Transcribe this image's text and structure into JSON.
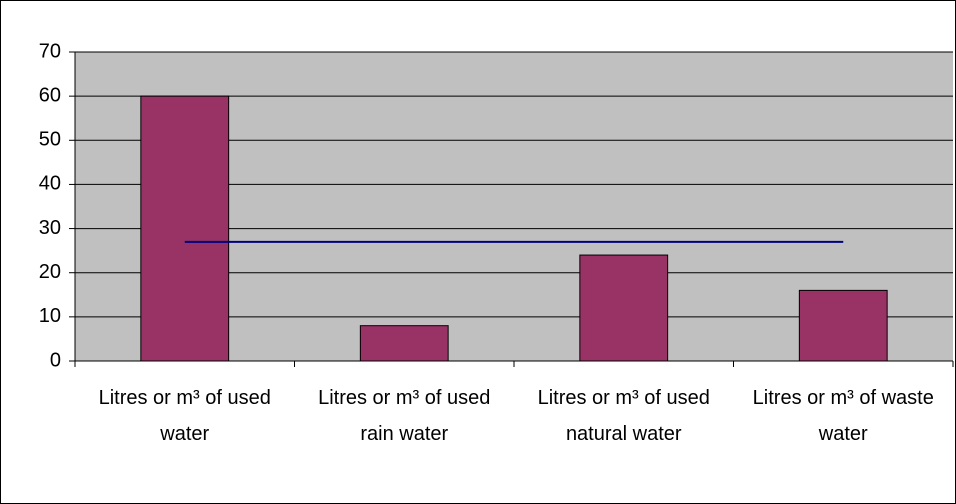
{
  "chart_data": {
    "type": "bar",
    "categories": [
      "Litres or m³ of used water",
      "Litres or m³ of used rain water",
      "Litres or m³ of used natural water",
      "Litres or m³ of waste water"
    ],
    "series": [
      {
        "type": "bar",
        "color": "#993366",
        "values": [
          60,
          8,
          24,
          16
        ]
      },
      {
        "type": "line",
        "color": "#000080",
        "values": [
          27,
          27,
          27,
          27
        ]
      }
    ],
    "ylim": [
      0,
      70
    ],
    "yticks": [
      0,
      10,
      20,
      30,
      40,
      50,
      60,
      70
    ],
    "grid": true,
    "plot_background": "#c0c0c0"
  }
}
